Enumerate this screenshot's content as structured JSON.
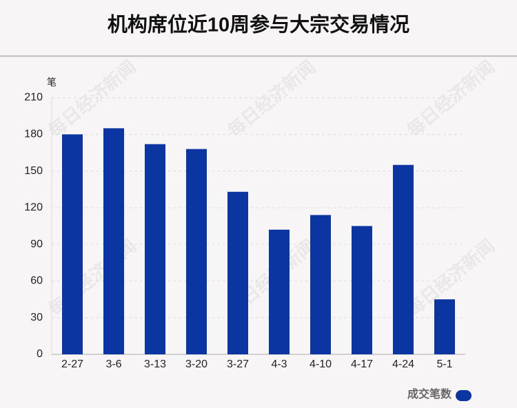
{
  "chart_data": {
    "type": "bar",
    "title": "机构席位近10周参与大宗交易情况",
    "y_label": "笔",
    "categories": [
      "2-27",
      "3-6",
      "3-13",
      "3-20",
      "3-27",
      "4-3",
      "4-10",
      "4-17",
      "4-24",
      "5-1"
    ],
    "series": [
      {
        "name": "成交笔数",
        "color": "#0b36a1",
        "values": [
          180,
          185,
          172,
          168,
          133,
          102,
          114,
          105,
          155,
          45
        ]
      }
    ],
    "ylim": [
      0,
      210
    ],
    "yticks": [
      0,
      30,
      60,
      90,
      120,
      150,
      180,
      210
    ],
    "grid": true,
    "watermark": "每日经济新闻"
  }
}
